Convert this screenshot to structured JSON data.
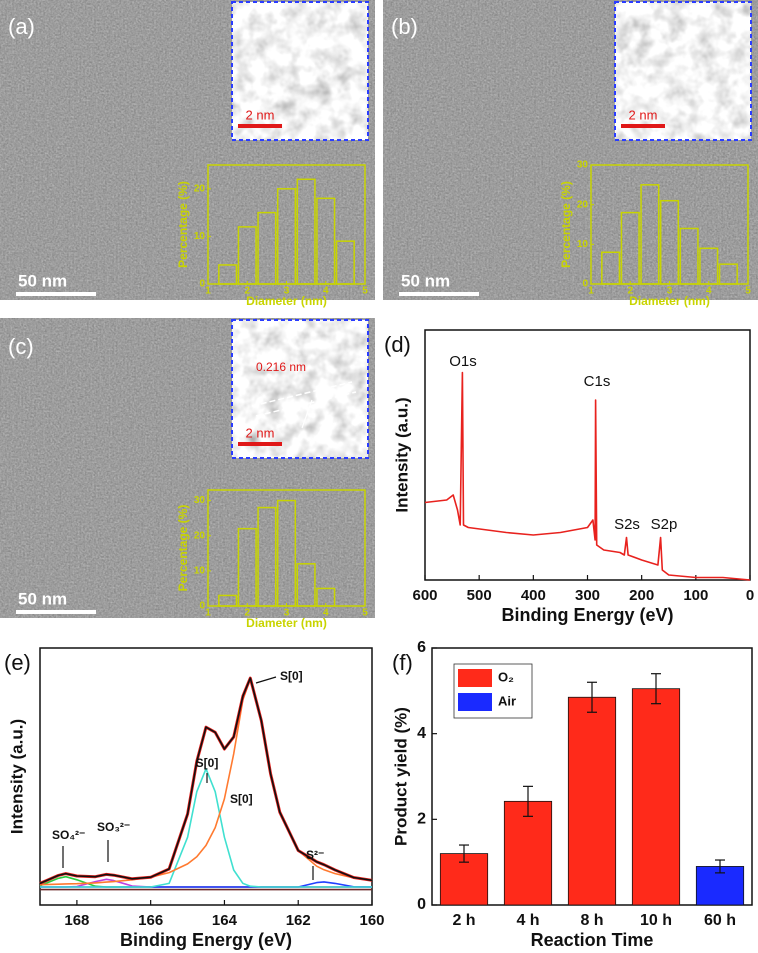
{
  "chart_data": [
    {
      "type": "histogram",
      "panel": "(a)",
      "scale_bar": "50 nm",
      "inset_scale_bar": "2 nm",
      "bins": [
        1.25,
        1.75,
        2.25,
        2.75,
        3.25,
        3.75,
        4.25,
        4.75
      ],
      "values": [
        4,
        12,
        15,
        20,
        22,
        18,
        9
      ],
      "xlim": [
        1,
        5
      ],
      "xticks": [
        1,
        2,
        3,
        4,
        5
      ],
      "ylim": [
        0,
        25
      ],
      "yticks": [
        0,
        10,
        20
      ],
      "xlabel": "Diameter (nm)",
      "ylabel": "Percentage (%)",
      "color": "#c8d400"
    },
    {
      "type": "histogram",
      "panel": "(b)",
      "scale_bar": "50 nm",
      "inset_scale_bar": "2 nm",
      "bins": [
        1.25,
        1.75,
        2.25,
        2.75,
        3.25,
        3.75,
        4.25,
        4.75
      ],
      "values": [
        8,
        18,
        25,
        21,
        14,
        9,
        5
      ],
      "xlim": [
        1,
        5
      ],
      "xticks": [
        1,
        2,
        3,
        4,
        5
      ],
      "ylim": [
        0,
        30
      ],
      "yticks": [
        0,
        10,
        20,
        30
      ],
      "xlabel": "Diameter (nm)",
      "ylabel": "Percentage (%)",
      "color": "#c8d400"
    },
    {
      "type": "histogram",
      "panel": "(c)",
      "scale_bar": "50 nm",
      "inset_scale_bar": "2 nm",
      "lattice_label": "0.216 nm",
      "bins": [
        1.25,
        1.75,
        2.25,
        2.75,
        3.25,
        3.75,
        4.25
      ],
      "values": [
        3,
        22,
        28,
        30,
        12,
        5
      ],
      "xlim": [
        1,
        5
      ],
      "xticks": [
        1,
        2,
        3,
        4,
        5
      ],
      "ylim": [
        0,
        33
      ],
      "yticks": [
        0,
        10,
        20,
        30
      ],
      "xlabel": "Diameter (nm)",
      "ylabel": "Percentage (%)",
      "color": "#c8d400"
    },
    {
      "type": "line",
      "panel": "(d)",
      "xlabel": "Binding Energy (eV)",
      "ylabel": "Intensity (a.u.)",
      "xlim": [
        600,
        0
      ],
      "xticks": [
        600,
        500,
        400,
        300,
        200,
        100,
        0
      ],
      "ylim": [
        0,
        100
      ],
      "x": [
        600,
        560,
        548,
        540,
        535,
        531,
        529,
        520,
        450,
        400,
        350,
        300,
        290,
        286,
        285,
        283,
        270,
        240,
        232,
        228,
        225,
        200,
        170,
        165,
        162,
        150,
        100,
        50,
        0
      ],
      "series": [
        {
          "color": "#e8221e",
          "values": [
            31,
            32,
            34,
            28,
            22,
            83,
            22,
            21,
            19,
            18,
            19,
            21,
            24,
            16,
            72,
            14,
            12,
            11,
            10,
            17,
            10,
            8,
            6,
            17,
            4,
            2,
            1,
            1,
            0
          ]
        }
      ],
      "annotations": [
        "O1s",
        "C1s",
        "S2s",
        "S2p"
      ]
    },
    {
      "type": "line",
      "panel": "(e)",
      "xlabel": "Binding Energy (eV)",
      "ylabel": "Intensity (a.u.)",
      "xlim": [
        169,
        160
      ],
      "xticks": [
        168,
        166,
        164,
        162,
        160
      ],
      "ylim": [
        0,
        100
      ],
      "x": [
        169,
        168.5,
        168.3,
        168,
        167.5,
        167.2,
        167,
        166.5,
        166,
        165.5,
        165,
        164.75,
        164.5,
        164.25,
        164,
        163.75,
        163.5,
        163.3,
        163,
        162.75,
        162.5,
        162,
        161.5,
        161.3,
        161,
        160.5,
        160
      ],
      "series": [
        {
          "color": "#6b2a2a",
          "values": [
            6,
            6,
            6,
            6,
            6,
            6,
            6,
            6,
            6,
            6,
            6,
            6,
            6,
            6,
            6,
            6,
            6,
            6,
            6,
            6,
            6,
            6,
            6,
            6,
            6,
            6,
            6
          ]
        },
        {
          "color": "#2ecc40",
          "values": [
            7.5,
            10.4,
            11,
            9.8,
            7.3,
            7,
            7,
            7,
            7,
            7,
            7,
            7,
            7,
            7,
            7,
            7,
            7,
            7,
            7,
            7,
            7,
            7,
            7,
            7,
            7,
            7,
            7
          ]
        },
        {
          "color": "#c040e0",
          "values": [
            7,
            7,
            7,
            7.2,
            9.1,
            10,
            9.5,
            7.4,
            7,
            7,
            7,
            7,
            7,
            7,
            7,
            7,
            7,
            7,
            7,
            7,
            7,
            7,
            7,
            7,
            7,
            7,
            7
          ]
        },
        {
          "color": "#2040ff",
          "values": [
            7,
            7,
            7,
            7,
            7,
            7,
            7,
            7,
            7,
            7,
            7,
            7,
            7,
            7,
            7,
            7,
            7,
            7,
            7,
            7,
            7,
            7,
            8.7,
            9,
            8.4,
            7.1,
            7
          ]
        },
        {
          "color": "#40e0d0",
          "values": [
            7,
            7,
            7,
            7,
            7,
            7,
            7,
            7,
            7,
            8.4,
            26.4,
            44.1,
            53,
            44.1,
            26.4,
            13.6,
            8.4,
            7.3,
            7,
            7,
            7,
            7,
            7,
            7,
            7,
            7,
            7
          ]
        },
        {
          "color": "#ff7a30",
          "values": [
            7.9,
            8.1,
            8.2,
            8.3,
            8.6,
            8.9,
            9.1,
            9.8,
            10.8,
            12.6,
            16,
            18.8,
            23.2,
            30.1,
            41.3,
            58.8,
            79.9,
            88,
            71.8,
            51,
            36.1,
            21.2,
            15.1,
            13.7,
            12.2,
            10.6,
            9.6
          ]
        },
        {
          "color": "#e8221e",
          "values": [
            8.4,
            11.5,
            12.2,
            11.3,
            11,
            11.9,
            11.6,
            10.2,
            10.8,
            14,
            35.4,
            55.9,
            69.2,
            67.2,
            60.7,
            65.4,
            81.3,
            88.3,
            71.8,
            51,
            36.1,
            21.2,
            16.8,
            15.7,
            13.6,
            10.7,
            9.6
          ]
        },
        {
          "color": "#111111",
          "values": [
            8.4,
            11.5,
            12.2,
            11.3,
            11,
            11.9,
            11.6,
            10.2,
            10.8,
            14,
            35.4,
            55.9,
            69.2,
            67.2,
            60.7,
            65.4,
            81.3,
            88.3,
            71.8,
            51,
            36.1,
            21.2,
            16.8,
            15.7,
            13.6,
            10.7,
            9.6
          ]
        }
      ],
      "annotations": [
        "S[0]",
        "S[0]",
        "S[0]",
        "SO₄²⁻",
        "SO₃²⁻",
        "S²⁻"
      ]
    },
    {
      "type": "bar",
      "panel": "(f)",
      "xlabel": "Reaction Time",
      "ylabel": "Product yield (%)",
      "categories": [
        "2 h",
        "4 h",
        "8 h",
        "10 h",
        "60 h"
      ],
      "ylim": [
        0,
        6
      ],
      "yticks": [
        0,
        2,
        4,
        6
      ],
      "legend": "top-left",
      "series": [
        {
          "name": "O₂",
          "color": "#ff2a1a",
          "values": [
            1.2,
            2.42,
            4.85,
            5.05,
            null
          ],
          "errors": [
            0.2,
            0.35,
            0.35,
            0.35,
            null
          ]
        },
        {
          "name": "Air",
          "color": "#1a2aff",
          "values": [
            null,
            null,
            null,
            null,
            0.9
          ],
          "errors": [
            null,
            null,
            null,
            null,
            0.15
          ]
        }
      ]
    }
  ]
}
